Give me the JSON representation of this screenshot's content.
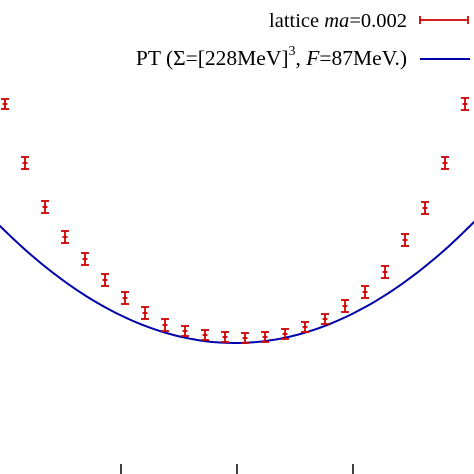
{
  "chart_data": {
    "type": "scatter",
    "title": "",
    "xlabel": "",
    "ylabel": "",
    "legend_position": "top-right",
    "colors": {
      "lattice": "#cc0000",
      "pt": "#0000aa"
    },
    "legend": {
      "lattice": {
        "label": "lattice",
        "label_italic": "ma",
        "label_rest": "=0.002"
      },
      "pt": {
        "prefix": "PT (",
        "sigma": "Σ",
        "bracket": "=[228MeV]",
        "sup": "3",
        "sep": ", ",
        "f_italic": "F",
        "f_rest": "=87MeV.)"
      }
    },
    "x_ticks_count": 3,
    "series": [
      {
        "name": "lattice ma=0.002",
        "kind": "errorbar",
        "x": [
          0,
          1,
          2,
          3,
          4,
          5,
          6,
          7,
          8,
          9,
          10,
          11,
          12,
          13,
          14,
          15,
          16,
          17,
          18,
          19,
          20,
          21,
          22,
          23
        ],
        "y": [
          104,
          163,
          207,
          237,
          259,
          280,
          298,
          313,
          325,
          331,
          335,
          337,
          338,
          337,
          334,
          327,
          319,
          306,
          292,
          272,
          240,
          208,
          163,
          104
        ],
        "err": [
          5,
          6,
          6,
          6,
          6,
          6,
          6,
          6,
          6,
          5,
          5,
          5,
          5,
          5,
          5,
          5,
          5,
          6,
          6,
          6,
          6,
          6,
          6,
          6
        ]
      },
      {
        "name": "PT (Σ=[228MeV]^3, F=87MeV.)",
        "kind": "line",
        "min_at_x": 11.5,
        "min_y": 343,
        "edge_y": 226
      }
    ]
  }
}
